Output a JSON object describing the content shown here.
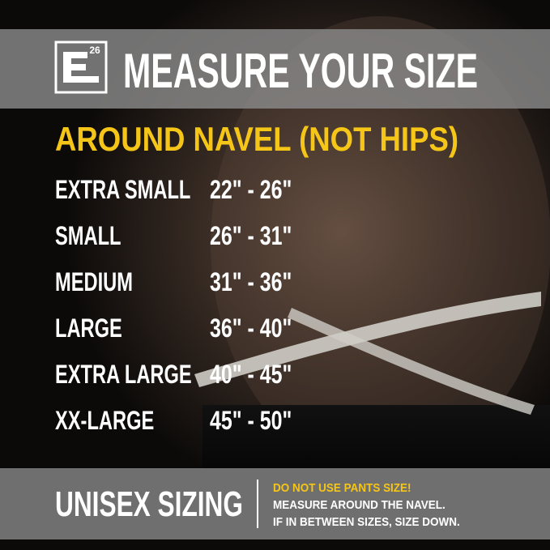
{
  "header": {
    "logo_number": "26",
    "title": "MEASURE YOUR SIZE"
  },
  "subtitle": "AROUND NAVEL (NOT HIPS)",
  "table": {
    "rows": [
      [
        "EXTRA SMALL",
        "22\" - 26\""
      ],
      [
        "SMALL",
        "26\" - 31\""
      ],
      [
        "MEDIUM",
        "31\" - 36\""
      ],
      [
        "LARGE",
        "36\" - 40\""
      ],
      [
        "EXTRA LARGE",
        "40\" - 45\""
      ],
      [
        "XX-LARGE",
        "45\" - 50\""
      ]
    ]
  },
  "footer": {
    "label": "UNISEX SIZING",
    "notes": [
      "DO NOT USE PANTS SIZE!",
      "MEASURE AROUND THE NAVEL.",
      "IF IN BETWEEN SIZES, SIZE DOWN."
    ]
  }
}
